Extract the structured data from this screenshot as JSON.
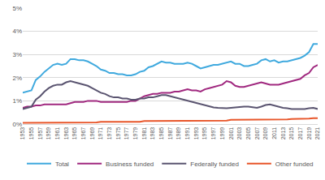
{
  "chart_data": {
    "type": "line",
    "x": [
      1953,
      1954,
      1955,
      1956,
      1957,
      1958,
      1959,
      1960,
      1961,
      1962,
      1963,
      1964,
      1965,
      1966,
      1967,
      1968,
      1969,
      1970,
      1971,
      1972,
      1973,
      1974,
      1975,
      1976,
      1977,
      1978,
      1979,
      1980,
      1981,
      1982,
      1983,
      1984,
      1985,
      1986,
      1987,
      1988,
      1989,
      1990,
      1991,
      1992,
      1993,
      1994,
      1995,
      1996,
      1997,
      1998,
      1999,
      2000,
      2001,
      2002,
      2003,
      2004,
      2005,
      2006,
      2007,
      2008,
      2009,
      2010,
      2011,
      2012,
      2013,
      2014,
      2015,
      2016,
      2017,
      2018,
      2019,
      2020,
      2021
    ],
    "series": [
      {
        "name": "Total",
        "color": "#3fa9de",
        "values": [
          1.35,
          1.4,
          1.45,
          1.9,
          2.05,
          2.25,
          2.4,
          2.55,
          2.6,
          2.55,
          2.6,
          2.8,
          2.8,
          2.75,
          2.75,
          2.7,
          2.6,
          2.5,
          2.35,
          2.3,
          2.2,
          2.2,
          2.15,
          2.15,
          2.1,
          2.1,
          2.15,
          2.25,
          2.3,
          2.45,
          2.5,
          2.6,
          2.7,
          2.65,
          2.65,
          2.6,
          2.6,
          2.6,
          2.65,
          2.6,
          2.5,
          2.4,
          2.45,
          2.5,
          2.55,
          2.55,
          2.6,
          2.65,
          2.7,
          2.6,
          2.6,
          2.5,
          2.5,
          2.55,
          2.6,
          2.75,
          2.8,
          2.7,
          2.75,
          2.65,
          2.7,
          2.7,
          2.75,
          2.8,
          2.85,
          2.95,
          3.1,
          3.45,
          3.45
        ]
      },
      {
        "name": "Business funded",
        "color": "#a0287f",
        "values": [
          0.7,
          0.75,
          0.75,
          0.8,
          0.8,
          0.85,
          0.85,
          0.85,
          0.85,
          0.85,
          0.85,
          0.9,
          0.95,
          0.95,
          0.95,
          1.0,
          1.0,
          1.0,
          0.95,
          0.95,
          0.95,
          0.95,
          0.95,
          0.95,
          0.95,
          1.0,
          1.0,
          1.1,
          1.2,
          1.25,
          1.3,
          1.3,
          1.35,
          1.35,
          1.35,
          1.4,
          1.4,
          1.45,
          1.5,
          1.45,
          1.45,
          1.4,
          1.5,
          1.55,
          1.6,
          1.65,
          1.7,
          1.85,
          1.8,
          1.65,
          1.6,
          1.6,
          1.65,
          1.7,
          1.75,
          1.8,
          1.75,
          1.7,
          1.7,
          1.7,
          1.75,
          1.8,
          1.85,
          1.9,
          1.95,
          2.1,
          2.2,
          2.45,
          2.55
        ]
      },
      {
        "name": "Federally funded",
        "color": "#5a5470",
        "values": [
          0.65,
          0.7,
          0.75,
          1.05,
          1.2,
          1.4,
          1.55,
          1.65,
          1.7,
          1.7,
          1.8,
          1.85,
          1.8,
          1.75,
          1.7,
          1.65,
          1.55,
          1.45,
          1.35,
          1.3,
          1.2,
          1.15,
          1.15,
          1.1,
          1.1,
          1.05,
          1.05,
          1.1,
          1.1,
          1.15,
          1.15,
          1.2,
          1.25,
          1.25,
          1.2,
          1.15,
          1.1,
          1.05,
          1.0,
          0.95,
          0.9,
          0.85,
          0.8,
          0.75,
          0.72,
          0.7,
          0.68,
          0.68,
          0.7,
          0.72,
          0.75,
          0.75,
          0.75,
          0.72,
          0.7,
          0.75,
          0.82,
          0.85,
          0.8,
          0.75,
          0.7,
          0.68,
          0.65,
          0.65,
          0.65,
          0.65,
          0.68,
          0.7,
          0.65
        ]
      },
      {
        "name": "Other funded",
        "color": "#e8562a",
        "values": [
          0.05,
          0.05,
          0.05,
          0.05,
          0.05,
          0.05,
          0.05,
          0.05,
          0.07,
          0.07,
          0.07,
          0.07,
          0.07,
          0.07,
          0.07,
          0.07,
          0.07,
          0.07,
          0.1,
          0.1,
          0.1,
          0.1,
          0.1,
          0.1,
          0.1,
          0.1,
          0.1,
          0.1,
          0.13,
          0.13,
          0.13,
          0.13,
          0.13,
          0.13,
          0.13,
          0.13,
          0.13,
          0.13,
          0.15,
          0.15,
          0.15,
          0.15,
          0.15,
          0.15,
          0.15,
          0.15,
          0.15,
          0.15,
          0.18,
          0.18,
          0.18,
          0.18,
          0.18,
          0.18,
          0.18,
          0.18,
          0.18,
          0.18,
          0.2,
          0.2,
          0.2,
          0.2,
          0.22,
          0.22,
          0.22,
          0.23,
          0.24,
          0.25,
          0.25
        ]
      }
    ],
    "xlim": [
      1953,
      2021
    ],
    "xticks": [
      1953,
      1955,
      1957,
      1959,
      1961,
      1963,
      1965,
      1967,
      1969,
      1971,
      1973,
      1975,
      1977,
      1979,
      1981,
      1983,
      1985,
      1987,
      1989,
      1991,
      1993,
      1995,
      1997,
      1999,
      2001,
      2003,
      2005,
      2007,
      2009,
      2011,
      2013,
      2015,
      2017,
      2019,
      2021
    ],
    "ylim": [
      0,
      5
    ],
    "yticks": [
      {
        "value": 0,
        "label": "0%"
      },
      {
        "value": 1,
        "label": "1%"
      },
      {
        "value": 2,
        "label": "2%"
      },
      {
        "value": 3,
        "label": "3%"
      },
      {
        "value": 4,
        "label": "4%"
      },
      {
        "value": 5,
        "label": "5%"
      }
    ],
    "grid": true,
    "legend": "bottom"
  }
}
